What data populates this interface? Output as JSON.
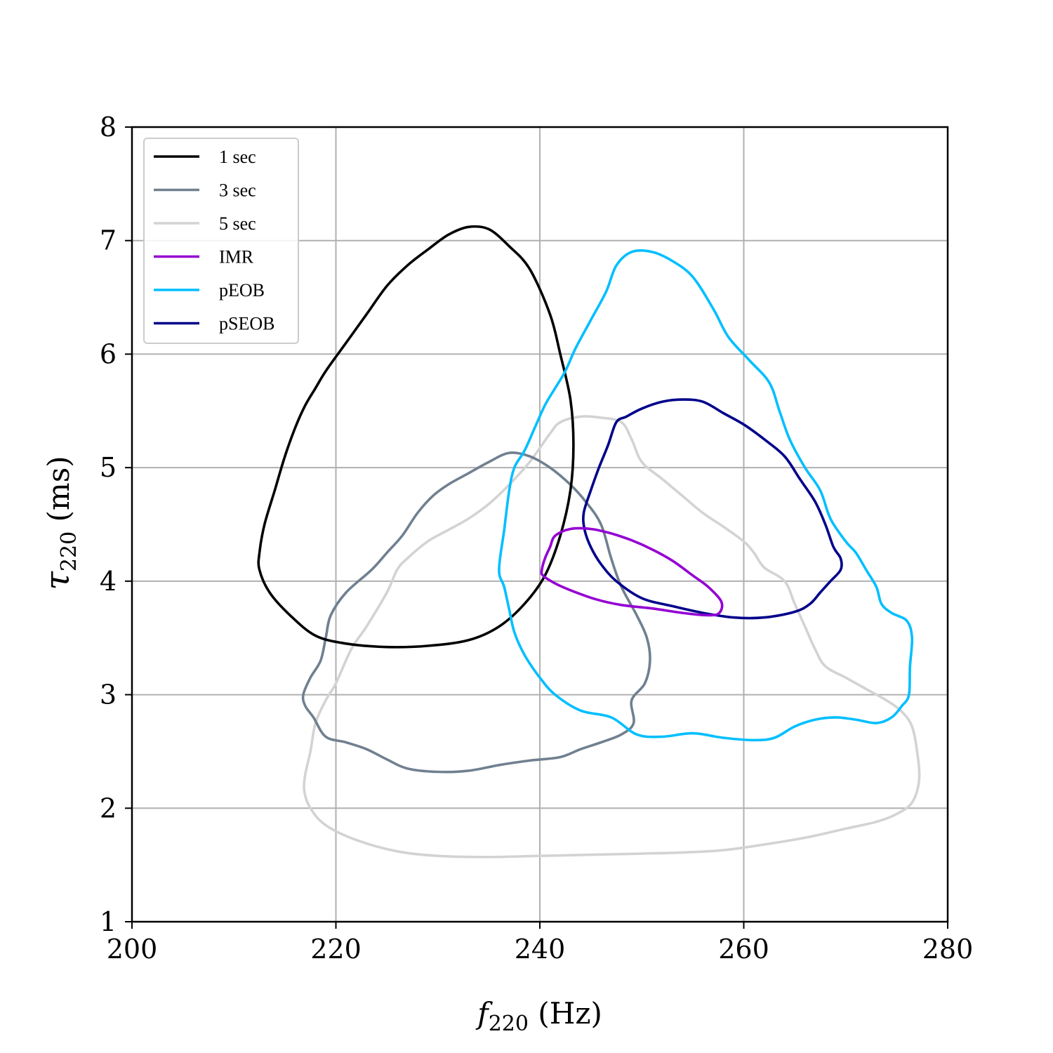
{
  "chart_data": {
    "type": "contour",
    "xlabel": {
      "symbol": "f",
      "subscript": "220",
      "unit": " (Hz)"
    },
    "ylabel": {
      "symbol": "τ",
      "subscript": "220",
      "unit": " (ms)"
    },
    "xlim": [
      200,
      280
    ],
    "ylim": [
      1,
      8
    ],
    "xticks": [
      200,
      220,
      240,
      260,
      280
    ],
    "yticks": [
      1,
      2,
      3,
      4,
      5,
      6,
      7,
      8
    ],
    "grid": true,
    "legend_position": "upper-left",
    "series": [
      {
        "name": "1 sec",
        "color": "#000000",
        "points": [
          [
            212.5,
            4.25
          ],
          [
            213,
            4.5
          ],
          [
            214,
            4.8
          ],
          [
            215,
            5.1
          ],
          [
            216,
            5.35
          ],
          [
            217,
            5.55
          ],
          [
            218,
            5.7
          ],
          [
            219,
            5.85
          ],
          [
            221,
            6.1
          ],
          [
            223,
            6.35
          ],
          [
            225,
            6.6
          ],
          [
            227,
            6.78
          ],
          [
            229,
            6.92
          ],
          [
            231,
            7.05
          ],
          [
            233,
            7.12
          ],
          [
            235,
            7.1
          ],
          [
            237,
            6.95
          ],
          [
            239,
            6.75
          ],
          [
            241,
            6.35
          ],
          [
            242,
            6.0
          ],
          [
            243,
            5.6
          ],
          [
            243.3,
            5.2
          ],
          [
            243,
            4.8
          ],
          [
            242,
            4.4
          ],
          [
            240.5,
            4.05
          ],
          [
            238.5,
            3.8
          ],
          [
            236,
            3.6
          ],
          [
            233,
            3.48
          ],
          [
            229,
            3.43
          ],
          [
            225,
            3.42
          ],
          [
            221,
            3.45
          ],
          [
            218,
            3.52
          ],
          [
            215.5,
            3.7
          ],
          [
            213.5,
            3.9
          ],
          [
            212.5,
            4.1
          ]
        ]
      },
      {
        "name": "3 sec",
        "color": "#708090",
        "points": [
          [
            216.8,
            3.0
          ],
          [
            217.5,
            3.15
          ],
          [
            218.5,
            3.3
          ],
          [
            219,
            3.5
          ],
          [
            219.5,
            3.7
          ],
          [
            221,
            3.9
          ],
          [
            223.5,
            4.1
          ],
          [
            225,
            4.25
          ],
          [
            226.5,
            4.4
          ],
          [
            228,
            4.6
          ],
          [
            229.5,
            4.75
          ],
          [
            231,
            4.85
          ],
          [
            233,
            4.95
          ],
          [
            235,
            5.05
          ],
          [
            237,
            5.13
          ],
          [
            239,
            5.1
          ],
          [
            241,
            5.0
          ],
          [
            243,
            4.85
          ],
          [
            244.5,
            4.7
          ],
          [
            246,
            4.5
          ],
          [
            247,
            4.2
          ],
          [
            248,
            3.95
          ],
          [
            249.5,
            3.7
          ],
          [
            250.5,
            3.5
          ],
          [
            250.8,
            3.3
          ],
          [
            250.3,
            3.1
          ],
          [
            249,
            2.95
          ],
          [
            249.2,
            2.75
          ],
          [
            248,
            2.65
          ],
          [
            246,
            2.58
          ],
          [
            244,
            2.52
          ],
          [
            242,
            2.45
          ],
          [
            239,
            2.42
          ],
          [
            236,
            2.38
          ],
          [
            233,
            2.33
          ],
          [
            230,
            2.32
          ],
          [
            227,
            2.35
          ],
          [
            225,
            2.43
          ],
          [
            223,
            2.52
          ],
          [
            221,
            2.58
          ],
          [
            219,
            2.63
          ],
          [
            217.8,
            2.8
          ],
          [
            217,
            2.9
          ]
        ]
      },
      {
        "name": "5 sec",
        "color": "#d3d3d3",
        "points": [
          [
            217,
            2.3
          ],
          [
            217.5,
            2.5
          ],
          [
            218,
            2.75
          ],
          [
            219,
            2.95
          ],
          [
            220,
            3.1
          ],
          [
            221.5,
            3.4
          ],
          [
            223,
            3.6
          ],
          [
            225,
            3.9
          ],
          [
            226,
            4.1
          ],
          [
            227,
            4.2
          ],
          [
            229,
            4.35
          ],
          [
            231,
            4.45
          ],
          [
            233,
            4.55
          ],
          [
            235,
            4.68
          ],
          [
            237,
            4.85
          ],
          [
            239,
            5.05
          ],
          [
            241,
            5.3
          ],
          [
            242,
            5.4
          ],
          [
            244,
            5.45
          ],
          [
            246,
            5.44
          ],
          [
            248,
            5.4
          ],
          [
            249,
            5.25
          ],
          [
            250,
            5.05
          ],
          [
            252,
            4.9
          ],
          [
            254,
            4.75
          ],
          [
            256,
            4.6
          ],
          [
            258,
            4.48
          ],
          [
            260,
            4.35
          ],
          [
            261,
            4.25
          ],
          [
            262,
            4.12
          ],
          [
            264,
            4.0
          ],
          [
            265,
            3.8
          ],
          [
            266,
            3.6
          ],
          [
            267,
            3.4
          ],
          [
            268,
            3.25
          ],
          [
            270,
            3.15
          ],
          [
            272,
            3.05
          ],
          [
            274,
            2.95
          ],
          [
            275.5,
            2.85
          ],
          [
            276.5,
            2.72
          ],
          [
            277,
            2.5
          ],
          [
            277.2,
            2.25
          ],
          [
            276.5,
            2.05
          ],
          [
            275,
            1.95
          ],
          [
            273,
            1.88
          ],
          [
            270,
            1.82
          ],
          [
            266,
            1.74
          ],
          [
            262,
            1.68
          ],
          [
            258,
            1.63
          ],
          [
            254,
            1.61
          ],
          [
            250,
            1.6
          ],
          [
            245,
            1.59
          ],
          [
            240,
            1.58
          ],
          [
            235,
            1.57
          ],
          [
            230,
            1.58
          ],
          [
            226,
            1.62
          ],
          [
            222,
            1.72
          ],
          [
            219,
            1.85
          ],
          [
            217.5,
            2.0
          ],
          [
            216.9,
            2.15
          ]
        ]
      },
      {
        "name": "IMR",
        "color": "#9400d3",
        "points": [
          [
            240.2,
            4.1
          ],
          [
            240.5,
            4.2
          ],
          [
            241,
            4.3
          ],
          [
            241.5,
            4.4
          ],
          [
            243,
            4.46
          ],
          [
            245,
            4.46
          ],
          [
            247,
            4.42
          ],
          [
            249,
            4.36
          ],
          [
            251,
            4.28
          ],
          [
            253,
            4.18
          ],
          [
            255,
            4.05
          ],
          [
            256.5,
            3.95
          ],
          [
            257.8,
            3.82
          ],
          [
            257.6,
            3.72
          ],
          [
            256.5,
            3.7
          ],
          [
            254,
            3.72
          ],
          [
            251,
            3.76
          ],
          [
            248,
            3.79
          ],
          [
            245.5,
            3.84
          ],
          [
            243,
            3.92
          ],
          [
            241.5,
            3.98
          ],
          [
            240.3,
            4.05
          ]
        ]
      },
      {
        "name": "pEOB",
        "color": "#00bfff",
        "points": [
          [
            236,
            4.1
          ],
          [
            236.5,
            4.45
          ],
          [
            237,
            4.8
          ],
          [
            237.5,
            5.0
          ],
          [
            238.5,
            5.15
          ],
          [
            239.5,
            5.35
          ],
          [
            240.5,
            5.55
          ],
          [
            241.5,
            5.7
          ],
          [
            242.5,
            5.85
          ],
          [
            243.5,
            6.05
          ],
          [
            245,
            6.3
          ],
          [
            246.5,
            6.55
          ],
          [
            247.5,
            6.78
          ],
          [
            249,
            6.9
          ],
          [
            251,
            6.9
          ],
          [
            253,
            6.82
          ],
          [
            255,
            6.68
          ],
          [
            257,
            6.4
          ],
          [
            258.5,
            6.15
          ],
          [
            260.5,
            5.95
          ],
          [
            262.5,
            5.75
          ],
          [
            263.5,
            5.5
          ],
          [
            264.5,
            5.25
          ],
          [
            266,
            5.0
          ],
          [
            267.5,
            4.8
          ],
          [
            268.5,
            4.55
          ],
          [
            270,
            4.35
          ],
          [
            271,
            4.25
          ],
          [
            272,
            4.1
          ],
          [
            273,
            3.95
          ],
          [
            273.5,
            3.8
          ],
          [
            274.5,
            3.72
          ],
          [
            276,
            3.65
          ],
          [
            276.5,
            3.5
          ],
          [
            276.3,
            3.25
          ],
          [
            276.2,
            3.0
          ],
          [
            275.5,
            2.9
          ],
          [
            274.5,
            2.8
          ],
          [
            273,
            2.75
          ],
          [
            271,
            2.78
          ],
          [
            269,
            2.8
          ],
          [
            267,
            2.78
          ],
          [
            265,
            2.72
          ],
          [
            263,
            2.62
          ],
          [
            261,
            2.6
          ],
          [
            258,
            2.62
          ],
          [
            255,
            2.66
          ],
          [
            252,
            2.63
          ],
          [
            249.5,
            2.65
          ],
          [
            247,
            2.8
          ],
          [
            244,
            2.86
          ],
          [
            241.5,
            3.0
          ],
          [
            240,
            3.15
          ],
          [
            238.5,
            3.35
          ],
          [
            237.5,
            3.55
          ],
          [
            237,
            3.75
          ],
          [
            236.5,
            3.95
          ]
        ]
      },
      {
        "name": "pSEOB",
        "color": "#00008b",
        "points": [
          [
            244.3,
            4.6
          ],
          [
            245,
            4.8
          ],
          [
            245.8,
            5.0
          ],
          [
            246.7,
            5.2
          ],
          [
            247.5,
            5.4
          ],
          [
            248.5,
            5.45
          ],
          [
            250,
            5.52
          ],
          [
            252,
            5.58
          ],
          [
            254,
            5.6
          ],
          [
            256,
            5.58
          ],
          [
            258,
            5.48
          ],
          [
            260,
            5.38
          ],
          [
            262,
            5.25
          ],
          [
            264,
            5.1
          ],
          [
            265.5,
            4.9
          ],
          [
            267,
            4.7
          ],
          [
            268,
            4.5
          ],
          [
            268.8,
            4.3
          ],
          [
            269.5,
            4.2
          ],
          [
            269.5,
            4.1
          ],
          [
            268.5,
            4.0
          ],
          [
            267.5,
            3.9
          ],
          [
            266.5,
            3.8
          ],
          [
            265,
            3.73
          ],
          [
            262,
            3.68
          ],
          [
            259,
            3.68
          ],
          [
            256,
            3.72
          ],
          [
            253,
            3.78
          ],
          [
            250,
            3.85
          ],
          [
            247.5,
            4.0
          ],
          [
            246,
            4.15
          ],
          [
            245,
            4.3
          ],
          [
            244.4,
            4.45
          ]
        ]
      }
    ]
  }
}
